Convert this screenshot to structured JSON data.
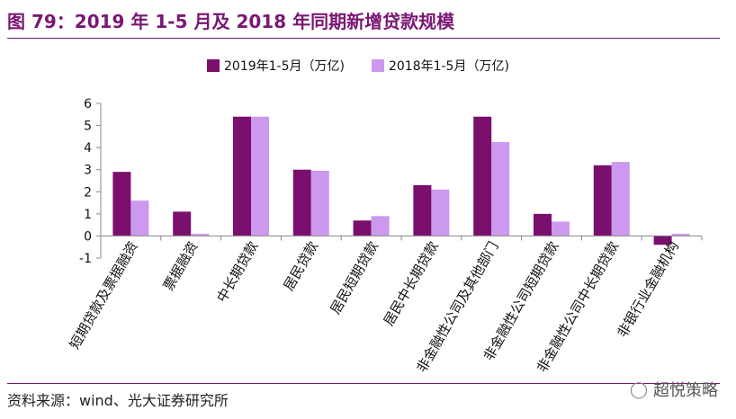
{
  "title": "图 79：2019 年 1-5 月及 2018 年同期新增贷款规模",
  "source": "资料来源：wind、光大证券研究所",
  "watermark": "超悦策略",
  "colors": {
    "accent": "#7a1773",
    "series1": "#7b0f6e",
    "series2": "#cc99ee"
  },
  "chart_data": {
    "type": "bar",
    "categories": [
      "短期贷款及票据融资",
      "票据融资",
      "中长期贷款",
      "居民贷款",
      "居民短期贷款",
      "居民中长期贷款",
      "非金融性公司及其他部门",
      "非金融性公司短期贷款",
      "非金融性公司中长期贷款",
      "非银行业金融机构"
    ],
    "series": [
      {
        "name": "2019年1-5月（万亿)",
        "values": [
          2.9,
          1.1,
          5.4,
          3.0,
          0.7,
          2.3,
          5.4,
          1.0,
          3.2,
          -0.4
        ]
      },
      {
        "name": "2018年1-5月（万亿)",
        "values": [
          1.6,
          0.1,
          5.4,
          2.95,
          0.9,
          2.1,
          4.25,
          0.65,
          3.35,
          0.1
        ]
      }
    ],
    "yticks": [
      "6",
      "5",
      "4",
      "3",
      "2",
      "1",
      "0",
      "-1"
    ],
    "ylim": [
      -1,
      6
    ],
    "legend_position": "top-center",
    "grid": false
  }
}
